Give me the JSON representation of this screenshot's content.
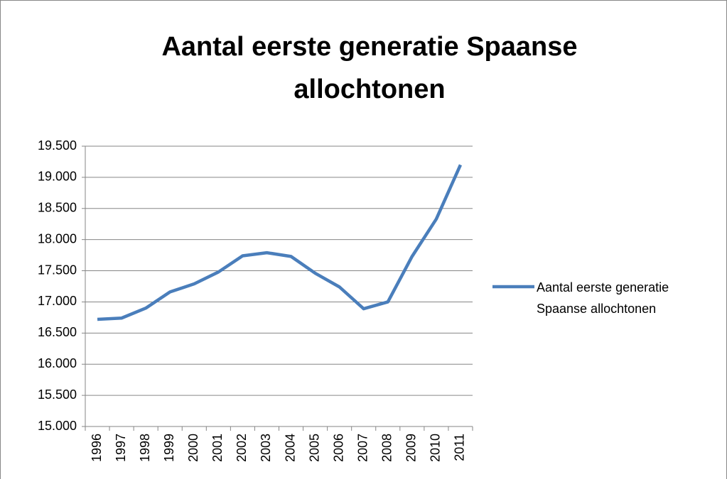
{
  "chart_data": {
    "type": "line",
    "title": "Aantal eerste generatie Spaanse allochtonen",
    "categories": [
      "1996",
      "1997",
      "1998",
      "1999",
      "2000",
      "2001",
      "2002",
      "2003",
      "2004",
      "2005",
      "2006",
      "2007",
      "2008",
      "2009",
      "2010",
      "2011"
    ],
    "series": [
      {
        "name": "Aantal eerste generatie Spaanse allochtonen",
        "color": "#4a7ebb",
        "values": [
          16720,
          16740,
          16900,
          17160,
          17290,
          17480,
          17740,
          17790,
          17730,
          17460,
          17240,
          16890,
          17000,
          17730,
          18330,
          19200
        ]
      }
    ],
    "ylim": [
      15000,
      19500
    ],
    "yticks": [
      {
        "value": 15000,
        "label": "15.000"
      },
      {
        "value": 15500,
        "label": "15.500"
      },
      {
        "value": 16000,
        "label": "16.000"
      },
      {
        "value": 16500,
        "label": "16.500"
      },
      {
        "value": 17000,
        "label": "17.000"
      },
      {
        "value": 17500,
        "label": "17.500"
      },
      {
        "value": 18000,
        "label": "18.000"
      },
      {
        "value": 18500,
        "label": "18.500"
      },
      {
        "value": 19000,
        "label": "19.000"
      },
      {
        "value": 19500,
        "label": "19.500"
      }
    ],
    "grid": true,
    "legend": "right"
  }
}
